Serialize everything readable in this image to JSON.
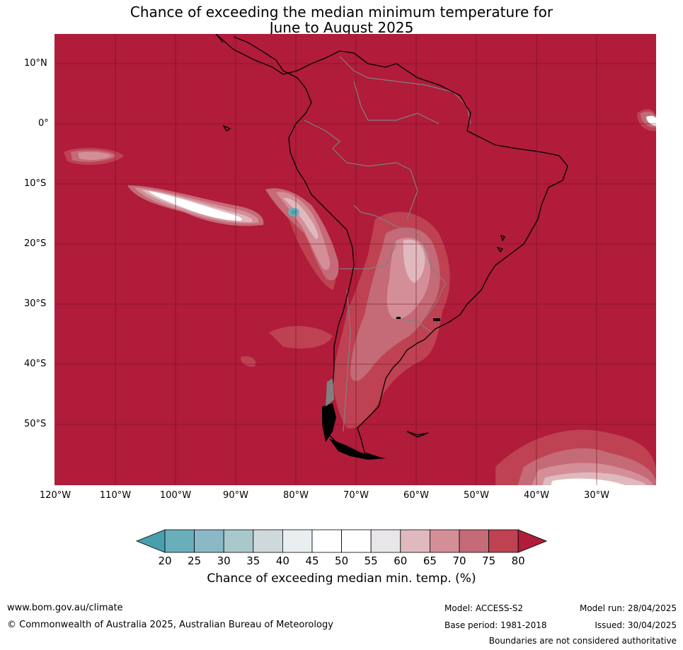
{
  "title": {
    "line1": "Chance of exceeding the median minimum temperature for",
    "line2": "June to August 2025"
  },
  "latitude_labels": [
    "10°N",
    "0°",
    "10°S",
    "20°S",
    "30°S",
    "40°S",
    "50°S"
  ],
  "longitude_labels": [
    "120°W",
    "110°W",
    "100°W",
    "90°W",
    "80°W",
    "70°W",
    "60°W",
    "50°W",
    "40°W",
    "30°W"
  ],
  "colorbar": {
    "ticks": [
      "20",
      "25",
      "30",
      "35",
      "40",
      "45",
      "50",
      "55",
      "60",
      "65",
      "70",
      "75",
      "80"
    ],
    "colors": [
      "#4a9fae",
      "#6aaebc",
      "#8ab8c6",
      "#a9c8cc",
      "#cfd8da",
      "#e9eff1",
      "#ffffff",
      "#ffffff",
      "#e8e6e8",
      "#e0b9bf",
      "#d48e98",
      "#c56a77",
      "#be4252",
      "#b01c3a"
    ],
    "label": "Chance of exceeding median min. temp. (%)"
  },
  "footer": {
    "website": "www.bom.gov.au/climate",
    "copyright": "© Commonwealth of Australia 2025, Australian Bureau of Meteorology",
    "model": "Model: ACCESS-S2",
    "base_period": "Base period: 1981-2018",
    "model_run": "Model run: 28/04/2025",
    "issued": "Issued: 30/04/2025",
    "disclaimer": "Boundaries are not considered authoritative"
  },
  "map": {
    "background_color": "#b01c3a",
    "coastline_color": "#000000",
    "border_color": "#808080",
    "gridline_color": "#6a0f1e"
  }
}
